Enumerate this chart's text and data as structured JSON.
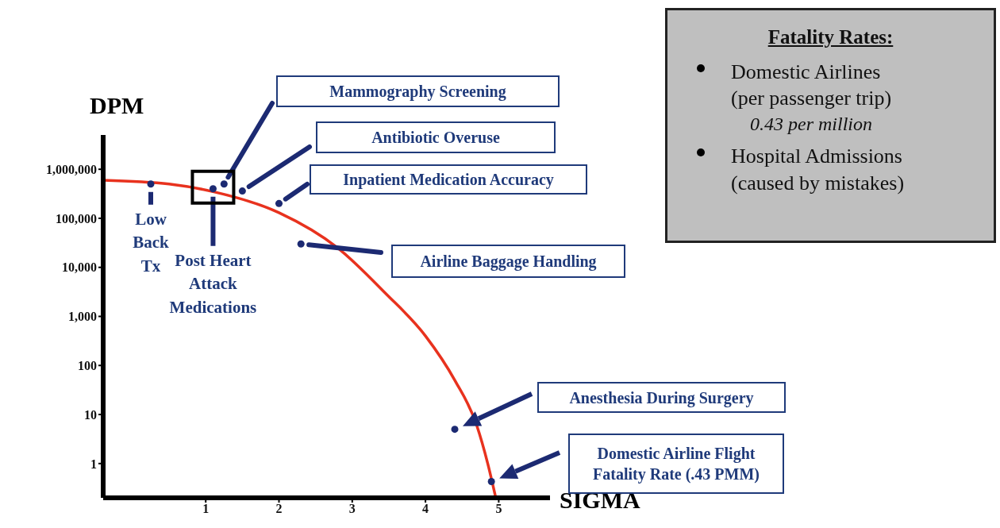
{
  "chart_data": {
    "type": "scatter",
    "xlabel": "SIGMA",
    "ylabel": "DPM",
    "log": true,
    "xlim": [
      -0.4,
      5.7
    ],
    "xticks": [
      1,
      2,
      3,
      4,
      5
    ],
    "ylim": [
      0.2,
      5000000
    ],
    "yticks": [
      1,
      10,
      100,
      {
        "value": 1000,
        "label": "1,000"
      },
      {
        "value": 10000,
        "label": "10,000"
      },
      {
        "value": 100000,
        "label": "100,000"
      },
      {
        "value": 1000000,
        "label": "1,000,000"
      }
    ],
    "series": [
      {
        "type": "line",
        "color": "#e8321e",
        "marker": "none",
        "x": [
          -0.4,
          0.5,
          1.1,
          2.0,
          2.8,
          3.45,
          4.0,
          4.4,
          4.7,
          4.85,
          4.96
        ],
        "values": [
          600000,
          500000,
          350000,
          130000,
          25000,
          3000,
          400,
          50,
          6,
          1,
          0.2
        ]
      },
      {
        "type": "scatter",
        "color": "#1c2a72",
        "marker": "circle",
        "x": [
          1.25,
          1.5,
          2.0,
          2.3,
          4.4,
          4.9,
          0.25,
          1.1
        ],
        "values": [
          500000,
          360000,
          200000,
          30000,
          5,
          0.43,
          500000,
          400000
        ]
      }
    ],
    "annotations": [
      "Mammography Screening",
      "Antibiotic Overuse",
      "Inpatient Medication Accuracy",
      "Airline Baggage Handling",
      "Anesthesia During Surgery",
      "Domestic Airline Flight Fatality Rate (.43 PMM)",
      "Low Back Tx",
      "Post Heart Attack Medications",
      "Fatality Rates:",
      "Domestic Airlines (per passenger trip)",
      "0.43 per million",
      "Hospital Admissions (caused by mistakes)"
    ]
  }
}
